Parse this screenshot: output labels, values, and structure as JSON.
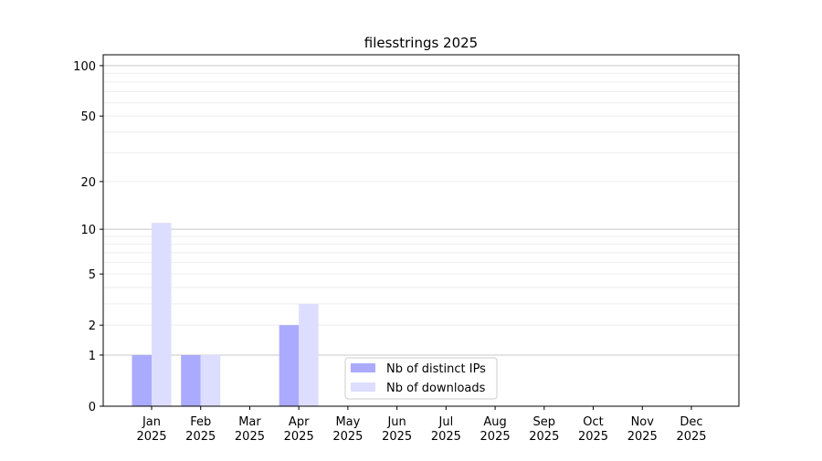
{
  "chart_data": {
    "type": "bar",
    "title": "filesstrings 2025",
    "xlabel": "",
    "ylabel": "",
    "yscale": "log(1+y)",
    "ylim": [
      0,
      116
    ],
    "yticks": [
      0,
      1,
      2,
      5,
      10,
      20,
      50,
      100
    ],
    "grid": true,
    "legend_position": "lower-center",
    "categories": [
      "Jan\n2025",
      "Feb\n2025",
      "Mar\n2025",
      "Apr\n2025",
      "May\n2025",
      "Jun\n2025",
      "Jul\n2025",
      "Aug\n2025",
      "Sep\n2025",
      "Oct\n2025",
      "Nov\n2025",
      "Dec\n2025"
    ],
    "series": [
      {
        "name": "Nb of distinct IPs",
        "color": "#aaaaff",
        "values": [
          1,
          1,
          0,
          2,
          0,
          0,
          0,
          0,
          0,
          0,
          0,
          0
        ]
      },
      {
        "name": "Nb of downloads",
        "color": "#ddddff",
        "values": [
          11,
          1,
          0,
          3,
          0,
          0,
          0,
          0,
          0,
          0,
          0,
          0
        ]
      }
    ]
  }
}
